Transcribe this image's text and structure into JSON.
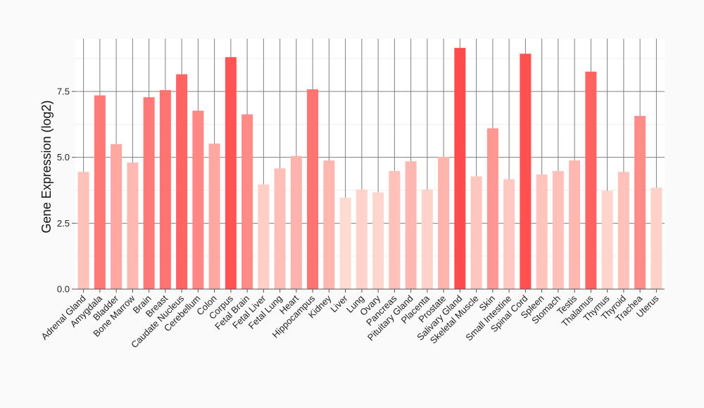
{
  "chart_data": {
    "type": "bar",
    "title": "",
    "xlabel": "",
    "ylabel": "Gene Expression (log2)",
    "ylim": [
      0,
      9.5
    ],
    "yticks": [
      "0.0",
      "2.5",
      "5.0",
      "7.5"
    ],
    "ytick_values": [
      0,
      2.5,
      5.0,
      7.5
    ],
    "grid": true,
    "legend": "none",
    "categories": [
      "Adrenal Gland",
      "Amygdala",
      "Bladder",
      "Bone Marrow",
      "Brain",
      "Breast",
      "Caudate Nucleus",
      "Cerebellum",
      "Colon",
      "Corpus",
      "Fetal Brain",
      "Fetal Liver",
      "Fetal Lung",
      "Heart",
      "Hippocampus",
      "Kidney",
      "Liver",
      "Lung",
      "Ovary",
      "Pancreas",
      "Pituitary Gland",
      "Placenta",
      "Prostate",
      "Salivary Gland",
      "Skeletal Muscle",
      "Skin",
      "Small Intestine",
      "Spinal Cord",
      "Spleen",
      "Stomach",
      "Testis",
      "Thalamus",
      "Thymus",
      "Thyroid",
      "Trachea",
      "Uterus"
    ],
    "values": [
      4.45,
      7.35,
      5.5,
      4.8,
      7.28,
      7.55,
      8.15,
      6.77,
      5.52,
      8.8,
      6.63,
      3.97,
      4.58,
      5.05,
      7.58,
      4.88,
      3.47,
      3.78,
      3.67,
      4.48,
      4.85,
      3.78,
      5.02,
      9.15,
      4.28,
      6.1,
      4.17,
      8.93,
      4.35,
      4.48,
      4.88,
      8.25,
      3.73,
      4.45,
      6.57,
      3.85
    ],
    "color_scale": {
      "low": "#ffdbd2",
      "high": "#ff4b4b"
    }
  }
}
